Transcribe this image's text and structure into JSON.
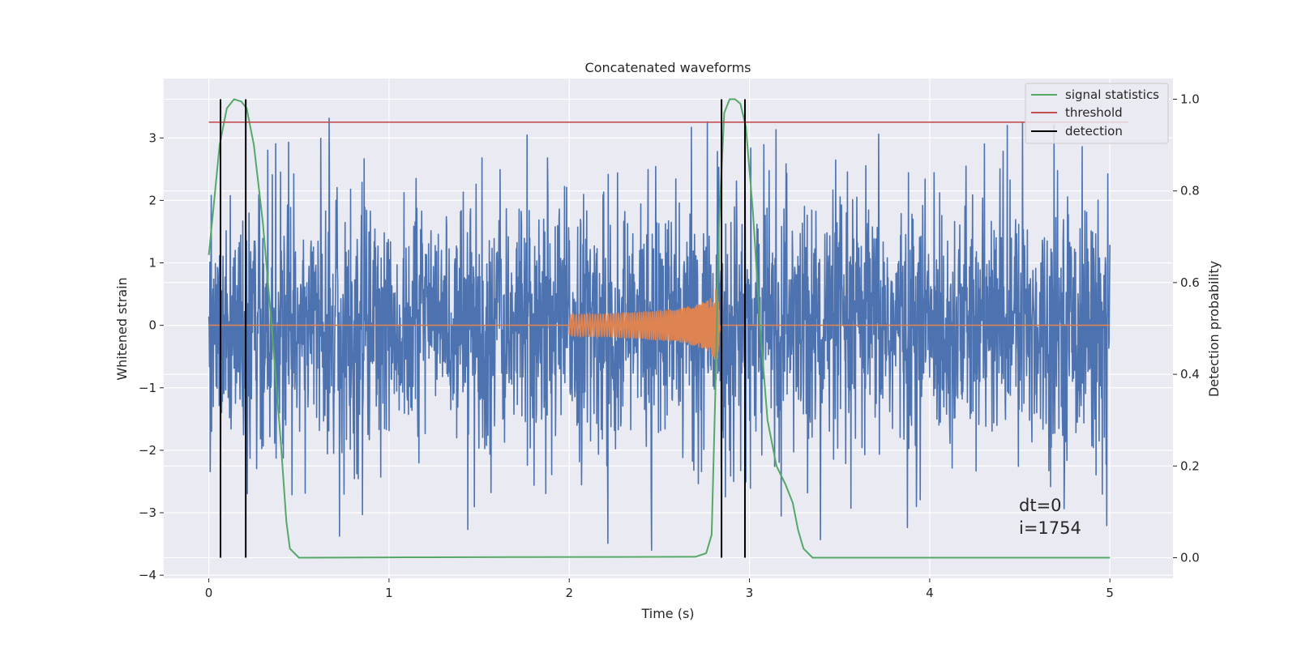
{
  "chart_data": {
    "type": "line",
    "title": "Concatenated waveforms",
    "xlabel": "Time (s)",
    "ylabel_left": "Whitened strain",
    "ylabel_right": "Detection probability",
    "xlim": [
      -0.25,
      5.35
    ],
    "ylim_left": [
      -4.05,
      3.95
    ],
    "ylim_right": [
      -0.045,
      1.045
    ],
    "xticks": [
      0,
      1,
      2,
      3,
      4,
      5
    ],
    "yticks_left": [
      -4,
      -3,
      -2,
      -1,
      0,
      1,
      2,
      3
    ],
    "yticks_right": [
      0.0,
      0.2,
      0.4,
      0.6,
      0.8,
      1.0
    ],
    "grid": true,
    "legend_position": "top-right",
    "series": [
      {
        "name": "",
        "kind": "noise",
        "axis": "left",
        "color": "#4c72b0",
        "x_range": [
          0,
          5
        ],
        "typical_amplitude": 1.3,
        "peak_amplitude": 3.6
      },
      {
        "name": "",
        "kind": "chirp",
        "axis": "left",
        "color": "#dd8452",
        "x": [
          0,
          2.0,
          2.0,
          2.2,
          2.4,
          2.6,
          2.7,
          2.78,
          2.82,
          2.84,
          5.0
        ],
        "envelope": [
          0,
          0,
          0.18,
          0.19,
          0.22,
          0.27,
          0.33,
          0.42,
          0.62,
          0,
          0
        ]
      },
      {
        "name": "signal statistics",
        "axis": "right",
        "color": "#55a868",
        "x": [
          0.0,
          0.03,
          0.06,
          0.1,
          0.14,
          0.18,
          0.21,
          0.25,
          0.3,
          0.35,
          0.4,
          0.43,
          0.45,
          0.5,
          1.2,
          2.7,
          2.76,
          2.79,
          2.81,
          2.83,
          2.86,
          2.89,
          2.92,
          2.95,
          2.98,
          3.02,
          3.06,
          3.1,
          3.15,
          3.2,
          3.24,
          3.27,
          3.3,
          3.35,
          3.6,
          5.0
        ],
        "y": [
          0.66,
          0.78,
          0.9,
          0.98,
          1.0,
          0.995,
          0.98,
          0.9,
          0.73,
          0.5,
          0.25,
          0.08,
          0.02,
          0.0,
          0.001,
          0.002,
          0.01,
          0.05,
          0.35,
          0.72,
          0.97,
          1.0,
          1.0,
          0.99,
          0.94,
          0.75,
          0.5,
          0.3,
          0.2,
          0.16,
          0.12,
          0.06,
          0.02,
          0.0,
          0.0,
          0.0
        ]
      },
      {
        "name": "threshold",
        "axis": "right",
        "color": "#c44e52",
        "x": [
          0,
          5.1
        ],
        "y": [
          0.95,
          0.95
        ]
      },
      {
        "name": "detection",
        "axis": "right",
        "color": "#000000",
        "style": "vlines",
        "x": [
          0.065,
          0.205,
          2.845,
          2.975
        ],
        "y_range": [
          0.0,
          1.0
        ]
      }
    ],
    "annotations": [
      "dt=0",
      "i=1754"
    ]
  }
}
